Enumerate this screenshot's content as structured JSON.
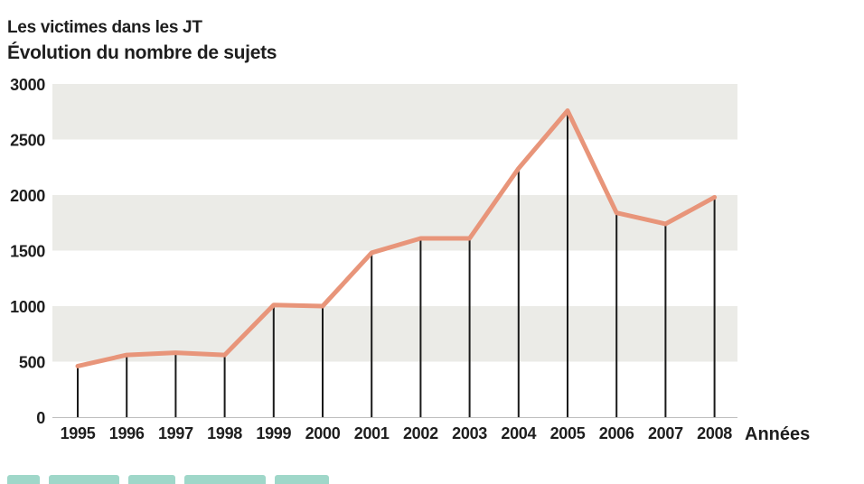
{
  "chart_data": {
    "type": "line",
    "title": "Les victimes dans les JT",
    "subtitle": "Évolution du nombre de sujets",
    "xlabel": "Années",
    "ylabel": "",
    "categories": [
      "1995",
      "1996",
      "1997",
      "1998",
      "1999",
      "2000",
      "2001",
      "2002",
      "2003",
      "2004",
      "2005",
      "2006",
      "2007",
      "2008"
    ],
    "values": [
      460,
      560,
      580,
      560,
      1010,
      1000,
      1480,
      1610,
      1610,
      2240,
      2760,
      1840,
      1740,
      1980
    ],
    "ylim": [
      0,
      3000
    ],
    "yticks": [
      "0",
      "500",
      "1000",
      "1500",
      "2000",
      "2500",
      "3000"
    ],
    "ytick_values": [
      0,
      500,
      1000,
      1500,
      2000,
      2500,
      3000
    ],
    "grid": "alternating horizontal bands",
    "drop_lines": true,
    "legend": "none",
    "colors": {
      "line": "#e8957a",
      "band": "#ebebe7",
      "drop_line": "#1a1a1a",
      "text": "#1e1e1e"
    }
  }
}
